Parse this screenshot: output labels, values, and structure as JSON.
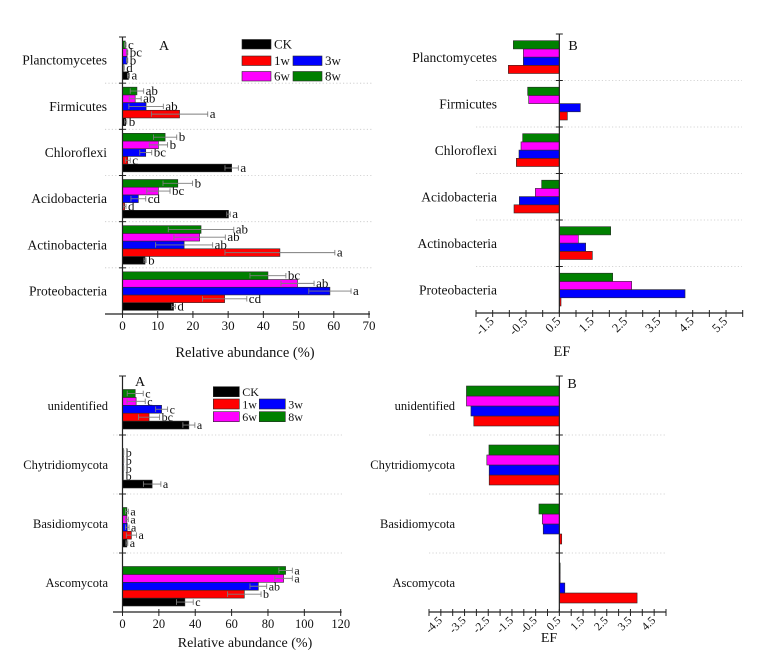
{
  "chart_data": [
    {
      "type": "bar",
      "orientation": "horizontal",
      "panel_label": "A",
      "title": "",
      "categories": [
        "Planctomycetes",
        "Firmicutes",
        "Chloroflexi",
        "Acidobacteria",
        "Actinobacteria",
        "Proteobacteria"
      ],
      "xlabel": "Relative abundance (%)",
      "ylabel": "",
      "xlim": [
        0,
        70
      ],
      "xticks": [
        0,
        10,
        20,
        30,
        40,
        50,
        60,
        70
      ],
      "xtick_labels": [
        "0",
        "10",
        "20",
        "30",
        "40",
        "50",
        "60",
        "70"
      ],
      "grid": false,
      "legend": {
        "position": "top-right",
        "entries": [
          "CK",
          "1w",
          "3w",
          "6w",
          "8w"
        ]
      },
      "series": [
        {
          "name": "CK",
          "color": "#000000",
          "values": [
            1.7,
            0.9,
            31.0,
            30.1,
            6.4,
            14.5
          ],
          "errors": [
            0.3,
            0.3,
            1.9,
            0.5,
            0.3,
            0.5
          ],
          "letters": [
            "a",
            "b",
            "a",
            "a",
            "b",
            "d"
          ]
        },
        {
          "name": "1w",
          "color": "#ff0000",
          "values": [
            0.2,
            16.2,
            1.5,
            0.6,
            44.7,
            29.0
          ],
          "errors": [
            0.3,
            8.0,
            0.7,
            0.4,
            15.6,
            6.3
          ],
          "letters": [
            "d",
            "a",
            "c",
            "d",
            "a",
            "cd"
          ]
        },
        {
          "name": "3w",
          "color": "#0000ff",
          "values": [
            1.3,
            6.7,
            6.6,
            4.5,
            17.5,
            58.9
          ],
          "errors": [
            0.2,
            4.9,
            1.7,
            2.1,
            8.1,
            6.0
          ],
          "letters": [
            "b",
            "ab",
            "bc",
            "cd",
            "ab",
            "a"
          ]
        },
        {
          "name": "6w",
          "color": "#ff00ff",
          "values": [
            1.3,
            3.6,
            10.2,
            10.2,
            21.9,
            49.7
          ],
          "errors": [
            0.2,
            1.7,
            2.6,
            3.3,
            7.3,
            4.7
          ],
          "letters": [
            "bc",
            "ab",
            "b",
            "bc",
            "ab",
            "ab"
          ]
        },
        {
          "name": "8w",
          "color": "#008000",
          "values": [
            0.8,
            4.1,
            12.1,
            15.7,
            22.3,
            41.3
          ],
          "errors": [
            0.2,
            1.9,
            3.3,
            4.2,
            9.3,
            5.1
          ],
          "letters": [
            "c",
            "ab",
            "b",
            "b",
            "ab",
            "bc"
          ]
        }
      ]
    },
    {
      "type": "bar",
      "orientation": "horizontal",
      "panel_label": "B",
      "title": "",
      "categories": [
        "Planctomycetes",
        "Firmicutes",
        "Chloroflexi",
        "Acidobacteria",
        "Actinobacteria",
        "Proteobacteria"
      ],
      "xlabel": "EF",
      "ylabel": "",
      "xlim": [
        -2.0,
        6.0
      ],
      "baseline": 0.5,
      "xticks": [
        -1.5,
        -0.5,
        0.5,
        1.5,
        2.5,
        3.5,
        4.5,
        5.5
      ],
      "xtick_labels": [
        "-1.5",
        "-0.5",
        "0.5",
        "1.5",
        "2.5",
        "3.5",
        "4.5",
        "5.5"
      ],
      "grid": false,
      "series": [
        {
          "name": "1w",
          "color": "#ff0000",
          "values": [
            -1.03,
            0.74,
            -0.79,
            -0.86,
            1.49,
            0.55
          ]
        },
        {
          "name": "3w",
          "color": "#0000ff",
          "values": [
            -0.58,
            1.13,
            -0.71,
            -0.7,
            1.29,
            4.27
          ]
        },
        {
          "name": "6w",
          "color": "#ff00ff",
          "values": [
            -0.58,
            -0.42,
            -0.65,
            -0.22,
            1.07,
            2.67
          ]
        },
        {
          "name": "8w",
          "color": "#008000",
          "values": [
            -0.88,
            -0.45,
            -0.6,
            -0.03,
            2.04,
            2.1
          ]
        }
      ]
    },
    {
      "type": "bar",
      "orientation": "horizontal",
      "panel_label": "A",
      "title": "",
      "categories": [
        "unidentified",
        "Chytridiomycota",
        "Basidiomycota",
        "Ascomycota"
      ],
      "xlabel": "Relative abundance (%)",
      "ylabel": "",
      "xlim": [
        0,
        120
      ],
      "xticks": [
        0,
        20,
        40,
        60,
        80,
        100,
        120
      ],
      "xtick_labels": [
        "0",
        "20",
        "40",
        "60",
        "80",
        "100",
        "120"
      ],
      "grid": false,
      "legend": {
        "position": "top-right",
        "entries": [
          "CK",
          "1w",
          "3w",
          "6w",
          "8w"
        ]
      },
      "series": [
        {
          "name": "CK",
          "color": "#000000",
          "values": [
            36.5,
            16.3,
            2.4,
            34.3
          ],
          "errors": [
            3.3,
            4.8,
            0.5,
            4.6
          ],
          "letters": [
            "a",
            "a",
            "a",
            "c"
          ]
        },
        {
          "name": "1w",
          "color": "#ff0000",
          "values": [
            14.6,
            0.4,
            4.9,
            67.0
          ],
          "errors": [
            5.8,
            0.2,
            2.8,
            9.2
          ],
          "letters": [
            "bc",
            "b",
            "a",
            "b"
          ]
        },
        {
          "name": "3w",
          "color": "#0000ff",
          "values": [
            21.5,
            0.5,
            2.6,
            74.7
          ],
          "errors": [
            3.3,
            0.2,
            1.0,
            4.6
          ],
          "letters": [
            "c",
            "b",
            "a",
            "ab"
          ]
        },
        {
          "name": "6w",
          "color": "#ff00ff",
          "values": [
            7.5,
            0.5,
            2.4,
            88.6
          ],
          "errors": [
            5.0,
            0.2,
            0.8,
            4.8
          ],
          "letters": [
            "c",
            "b",
            "a",
            "a"
          ]
        },
        {
          "name": "8w",
          "color": "#008000",
          "values": [
            7.0,
            0.5,
            2.4,
            89.7
          ],
          "errors": [
            4.4,
            0.2,
            0.8,
            3.7
          ],
          "letters": [
            "c",
            "b",
            "a",
            "a"
          ]
        }
      ]
    },
    {
      "type": "bar",
      "orientation": "horizontal",
      "panel_label": "B",
      "title": "",
      "categories": [
        "unidentified",
        "Chytridiomycota",
        "Basidiomycota",
        "Ascomycota"
      ],
      "xlabel": "EF",
      "ylabel": "",
      "xlim": [
        -5.0,
        5.0
      ],
      "baseline": 0.5,
      "xticks": [
        -4.5,
        -3.5,
        -2.5,
        -1.5,
        -0.5,
        0.5,
        1.5,
        2.5,
        3.5,
        4.5
      ],
      "xtick_labels": [
        "-4.5",
        "-3.5",
        "-2.5",
        "-1.5",
        "-0.5",
        "0.5",
        "1.5",
        "2.5",
        "3.5",
        "4.5"
      ],
      "grid": false,
      "series": [
        {
          "name": "1w",
          "color": "#ff0000",
          "values": [
            -3.11,
            -2.46,
            0.6,
            3.78
          ]
        },
        {
          "name": "3w",
          "color": "#0000ff",
          "values": [
            -3.23,
            -2.46,
            -0.18,
            0.73
          ]
        },
        {
          "name": "6w",
          "color": "#ff00ff",
          "values": [
            -3.42,
            -2.56,
            -0.22,
            0.52
          ]
        },
        {
          "name": "8w",
          "color": "#008000",
          "values": [
            -3.42,
            -2.47,
            -0.36,
            0.53
          ]
        }
      ]
    }
  ]
}
